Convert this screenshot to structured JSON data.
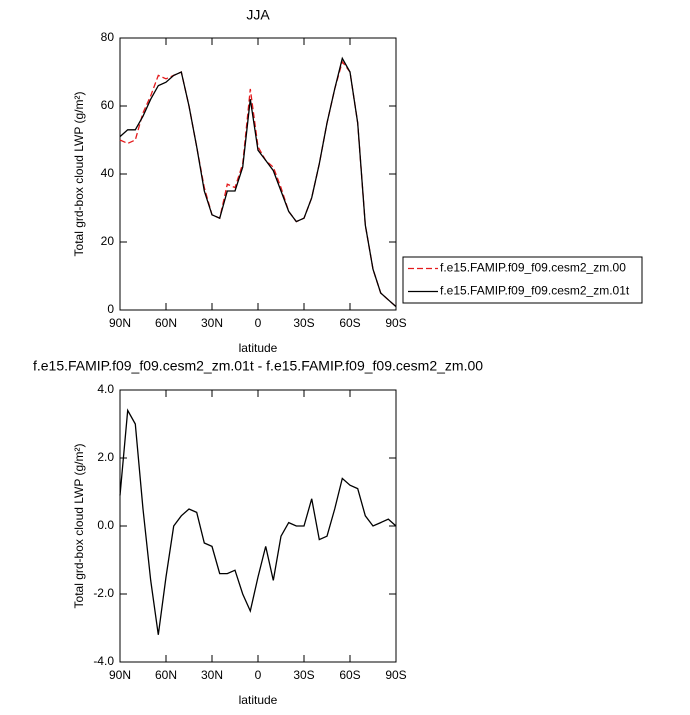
{
  "chart_data": [
    {
      "type": "line",
      "title": "JJA",
      "xlabel": "latitude",
      "ylabel": "Total grd-box cloud LWP (g/m²)",
      "x": [
        90,
        85,
        80,
        75,
        70,
        65,
        60,
        55,
        50,
        45,
        40,
        35,
        30,
        25,
        20,
        15,
        10,
        5,
        0,
        -5,
        -10,
        -15,
        -20,
        -25,
        -30,
        -35,
        -40,
        -45,
        -50,
        -55,
        -60,
        -65,
        -70,
        -75,
        -80,
        -85,
        -90
      ],
      "xlim": [
        90,
        -90
      ],
      "xticks": [
        {
          "value": 90,
          "label": "90N"
        },
        {
          "value": 60,
          "label": "60N"
        },
        {
          "value": 30,
          "label": "30N"
        },
        0,
        {
          "value": -30,
          "label": "30S"
        },
        {
          "value": -60,
          "label": "60S"
        },
        {
          "value": -90,
          "label": "90S"
        }
      ],
      "ylim": [
        0,
        80
      ],
      "yticks": [
        0,
        20,
        40,
        60,
        80
      ],
      "series": [
        {
          "name": "f.e15.FAMIP.f09_f09.cesm2_zm.00",
          "color": "#e41a1c",
          "dashed": true,
          "values": [
            50,
            49,
            50,
            58,
            63,
            69,
            68,
            69,
            70,
            60,
            48,
            36,
            28,
            27,
            37,
            36,
            43,
            65,
            48,
            44,
            42,
            36,
            29,
            26,
            27,
            33,
            43,
            55,
            65,
            73,
            70,
            55,
            25,
            12,
            5,
            3,
            1
          ]
        },
        {
          "name": "f.e15.FAMIP.f09_f09.cesm2_zm.01t",
          "color": "#000000",
          "dashed": false,
          "values": [
            51,
            53,
            53,
            57,
            62,
            66,
            67,
            69,
            70,
            60,
            48,
            35,
            28,
            27,
            35,
            35,
            42,
            62,
            47,
            44,
            41,
            35,
            29,
            26,
            27,
            33,
            43,
            55,
            65,
            74,
            70,
            55,
            25,
            12,
            5,
            3,
            1
          ]
        }
      ],
      "legend": "right"
    },
    {
      "type": "line",
      "title": "f.e15.FAMIP.f09_f09.cesm2_zm.01t - f.e15.FAMIP.f09_f09.cesm2_zm.00",
      "xlabel": "latitude",
      "ylabel": "Total grd-box cloud LWP (g/m²)",
      "x": [
        90,
        85,
        80,
        75,
        70,
        65,
        60,
        55,
        50,
        45,
        40,
        35,
        30,
        25,
        20,
        15,
        10,
        5,
        0,
        -5,
        -10,
        -15,
        -20,
        -25,
        -30,
        -35,
        -40,
        -45,
        -50,
        -55,
        -60,
        -65,
        -70,
        -75,
        -80,
        -85,
        -90
      ],
      "xlim": [
        90,
        -90
      ],
      "xticks": [
        {
          "value": 90,
          "label": "90N"
        },
        {
          "value": 60,
          "label": "60N"
        },
        {
          "value": 30,
          "label": "30N"
        },
        0,
        {
          "value": -30,
          "label": "30S"
        },
        {
          "value": -60,
          "label": "60S"
        },
        {
          "value": -90,
          "label": "90S"
        }
      ],
      "ylim": [
        -4,
        4
      ],
      "yticks": [
        {
          "value": -4,
          "label": "-4.0"
        },
        {
          "value": -2,
          "label": "-2.0"
        },
        {
          "value": 0,
          "label": "0.0"
        },
        {
          "value": 2,
          "label": "2.0"
        },
        {
          "value": 4,
          "label": "4.0"
        }
      ],
      "series": [
        {
          "color": "#000000",
          "dashed": false,
          "values": [
            0.9,
            3.4,
            3.0,
            0.5,
            -1.6,
            -3.2,
            -1.5,
            0.0,
            0.3,
            0.5,
            0.4,
            -0.5,
            -0.6,
            -1.4,
            -1.4,
            -1.3,
            -2.0,
            -2.5,
            -1.5,
            -0.6,
            -1.6,
            -0.3,
            0.1,
            0.0,
            0.0,
            0.8,
            -0.4,
            -0.3,
            0.5,
            1.4,
            1.2,
            1.1,
            0.3,
            0.0,
            0.1,
            0.2,
            0.0
          ]
        }
      ]
    }
  ]
}
